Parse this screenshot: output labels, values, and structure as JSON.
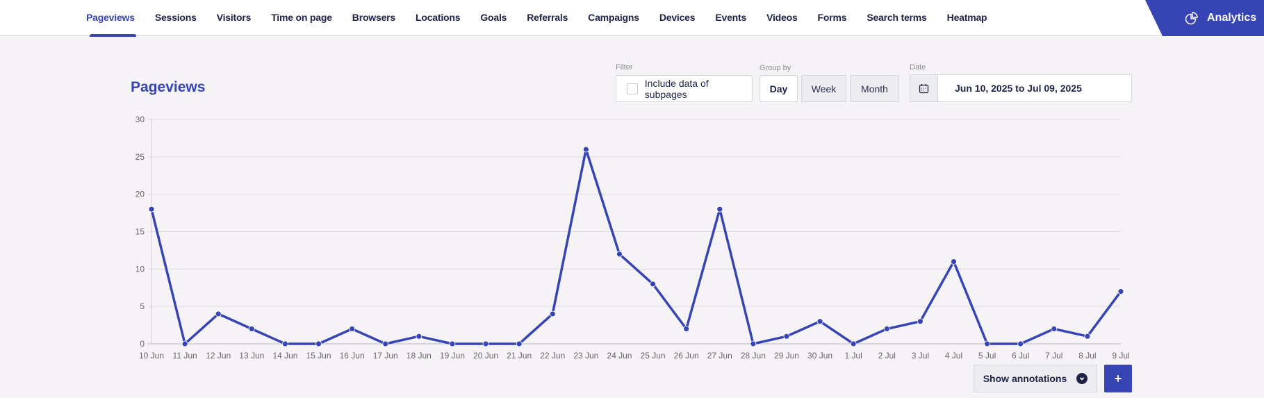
{
  "nav": {
    "tabs": [
      {
        "label": "Pageviews",
        "active": true
      },
      {
        "label": "Sessions"
      },
      {
        "label": "Visitors"
      },
      {
        "label": "Time on page"
      },
      {
        "label": "Browsers"
      },
      {
        "label": "Locations"
      },
      {
        "label": "Goals"
      },
      {
        "label": "Referrals"
      },
      {
        "label": "Campaigns"
      },
      {
        "label": "Devices"
      },
      {
        "label": "Events"
      },
      {
        "label": "Videos"
      },
      {
        "label": "Forms"
      },
      {
        "label": "Search terms"
      },
      {
        "label": "Heatmap"
      }
    ],
    "brand": {
      "label": "Analytics",
      "icon": "pie-chart-icon"
    }
  },
  "page": {
    "title": "Pageviews"
  },
  "filter": {
    "label": "Filter",
    "checkbox_label": "Include data of subpages",
    "checked": false
  },
  "group_by": {
    "label": "Group by",
    "options": [
      "Day",
      "Week",
      "Month"
    ],
    "selected": "Day"
  },
  "date": {
    "label": "Date",
    "icon": "calendar-icon",
    "value": "Jun 10, 2025 to Jul 09, 2025"
  },
  "annotations": {
    "show_label": "Show annotations",
    "icon": "chevron-down-circle-icon",
    "add_label": "+"
  },
  "colors": {
    "accent": "#3644b4",
    "text": "#1d2347",
    "background": "#f5f3f5",
    "grid": "#dcdadf"
  },
  "chart_data": {
    "type": "line",
    "title": "Pageviews",
    "xlabel": "",
    "ylabel": "",
    "ylim": [
      0,
      30
    ],
    "yticks": [
      0,
      5,
      10,
      15,
      20,
      25,
      30
    ],
    "grid": true,
    "legend": "none",
    "categories": [
      "10 Jun",
      "11 Jun",
      "12 Jun",
      "13 Jun",
      "14 Jun",
      "15 Jun",
      "16 Jun",
      "17 Jun",
      "18 Jun",
      "19 Jun",
      "20 Jun",
      "21 Jun",
      "22 Jun",
      "23 Jun",
      "24 Jun",
      "25 Jun",
      "26 Jun",
      "27 Jun",
      "28 Jun",
      "29 Jun",
      "30 Jun",
      "1 Jul",
      "2 Jul",
      "3 Jul",
      "4 Jul",
      "5 Jul",
      "6 Jul",
      "7 Jul",
      "8 Jul",
      "9 Jul"
    ],
    "series": [
      {
        "name": "Pageviews",
        "color": "#3644b4",
        "values": [
          18,
          0,
          4,
          2,
          0,
          0,
          2,
          0,
          1,
          0,
          0,
          0,
          4,
          26,
          12,
          8,
          2,
          18,
          0,
          1,
          3,
          0,
          2,
          3,
          11,
          0,
          0,
          2,
          1,
          7
        ]
      }
    ]
  }
}
